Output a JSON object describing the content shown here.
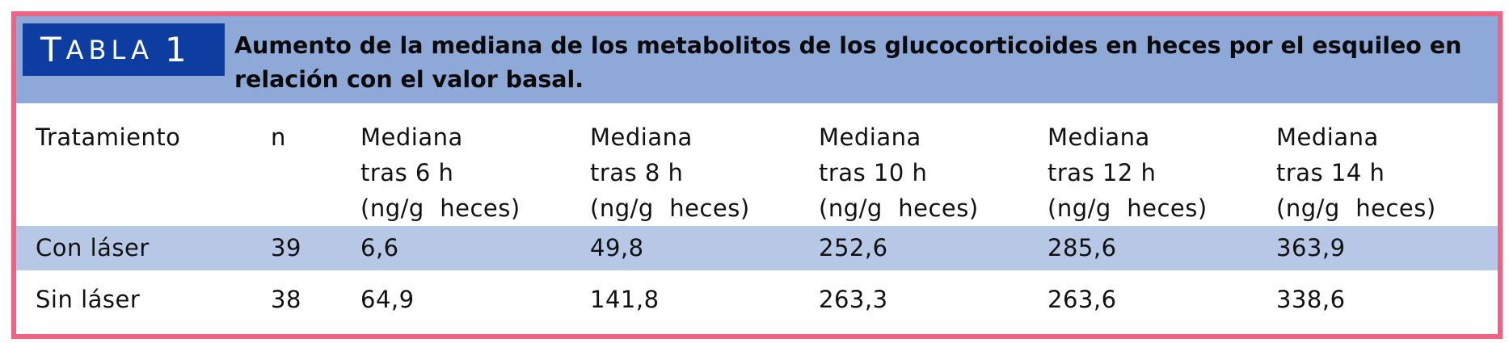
{
  "table": {
    "tag": {
      "first_letter": "T",
      "rest": "ABLA",
      "number": "1"
    },
    "title": "Aumento de la mediana de los metabolitos de los glucocorticoides en heces por el esquileo en relación con el valor basal.",
    "columns": [
      {
        "lines": [
          "Tratamiento"
        ]
      },
      {
        "lines": [
          "n"
        ]
      },
      {
        "lines": [
          "Mediana",
          "tras 6 h",
          "(ng/g  heces)"
        ]
      },
      {
        "lines": [
          "Mediana",
          "tras 8 h",
          "(ng/g  heces)"
        ]
      },
      {
        "lines": [
          "Mediana",
          "tras 10 h",
          "(ng/g  heces)"
        ]
      },
      {
        "lines": [
          "Mediana",
          "tras 12 h",
          "(ng/g  heces)"
        ]
      },
      {
        "lines": [
          "Mediana",
          "tras 14 h",
          "(ng/g  heces)"
        ]
      }
    ],
    "rows": [
      {
        "cells": [
          "Con láser",
          "39",
          "6,6",
          "49,8",
          "252,6",
          "285,6",
          "363,9"
        ]
      },
      {
        "cells": [
          "Sin láser",
          "38",
          "64,9",
          "141,8",
          "263,3",
          "263,6",
          "338,6"
        ]
      }
    ]
  },
  "colors": {
    "border": "#ee6381",
    "header_band": "#8ea8d8",
    "tag_background": "#0d3da0",
    "row_band": "#b7c8e6"
  }
}
